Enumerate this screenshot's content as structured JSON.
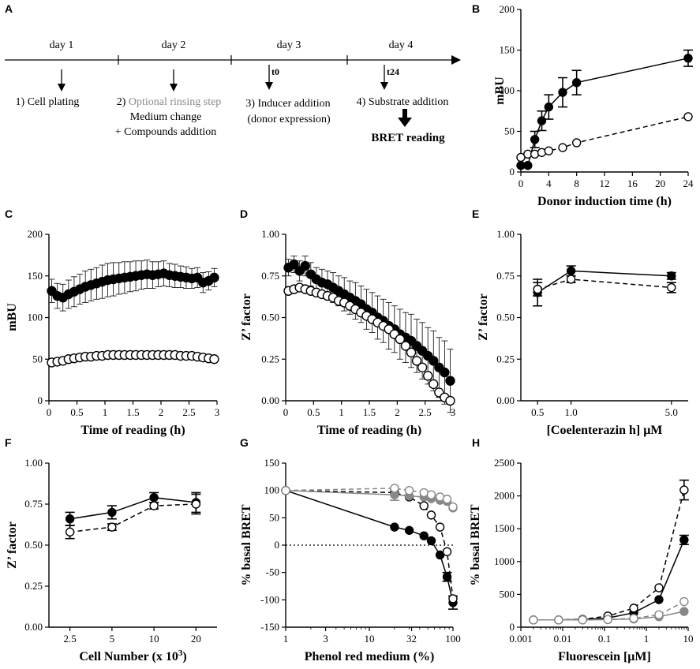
{
  "panel_labels": [
    "A",
    "B",
    "C",
    "D",
    "E",
    "F",
    "G",
    "H"
  ],
  "timeline": {
    "days": [
      "day 1",
      "day 2",
      "day 3",
      "day 4"
    ],
    "markers": [
      "t0",
      "t24"
    ],
    "steps": [
      {
        "lines": [
          "1) Cell plating"
        ],
        "grey_prefix": ""
      },
      {
        "lines": [
          "Optional rinsing step",
          "Medium change",
          "+ Compounds addition"
        ],
        "grey_prefix": "2) "
      },
      {
        "lines": [
          "3) Inducer addition",
          "(donor expression)"
        ],
        "grey_prefix": ""
      },
      {
        "lines": [
          "4) Substrate addition"
        ],
        "grey_prefix": ""
      }
    ],
    "final": "BRET reading"
  },
  "chart_data": [
    {
      "id": "B",
      "type": "line",
      "xlabel": "Donor induction time (h)",
      "ylabel": "mBU",
      "xlim": [
        0,
        24
      ],
      "ylim": [
        0,
        200
      ],
      "xticks": [
        0,
        4,
        8,
        12,
        16,
        20,
        24
      ],
      "yticks": [
        0,
        50,
        100,
        150,
        200
      ],
      "series": [
        {
          "name": "filled",
          "style": "solid",
          "color": "#000000",
          "fill": "#000000",
          "x": [
            0,
            1,
            2,
            3,
            4,
            6,
            8,
            24
          ],
          "y": [
            8,
            8,
            40,
            63,
            80,
            98,
            110,
            140
          ],
          "err": [
            0,
            0,
            10,
            12,
            15,
            18,
            15,
            10
          ]
        },
        {
          "name": "open",
          "style": "dashed",
          "color": "#000000",
          "fill": "#ffffff",
          "x": [
            0,
            1,
            2,
            3,
            4,
            6,
            8,
            24
          ],
          "y": [
            18,
            22,
            22,
            24,
            26,
            30,
            36,
            68
          ],
          "err": [
            0,
            0,
            0,
            0,
            0,
            0,
            0,
            0
          ]
        }
      ]
    },
    {
      "id": "C",
      "type": "scatter",
      "xlabel": "Time of reading (h)",
      "ylabel": "mBU",
      "xlim": [
        0,
        3
      ],
      "ylim": [
        0,
        200
      ],
      "xticks": [
        0,
        0.5,
        1,
        1.5,
        2,
        2.5,
        3
      ],
      "yticks": [
        0,
        50,
        100,
        150,
        200
      ],
      "series": [
        {
          "name": "filled",
          "style": "none",
          "color": "#000000",
          "fill": "#000000",
          "x": [
            0.05,
            0.15,
            0.25,
            0.35,
            0.45,
            0.55,
            0.65,
            0.75,
            0.85,
            0.95,
            1.05,
            1.15,
            1.25,
            1.35,
            1.45,
            1.55,
            1.65,
            1.75,
            1.85,
            1.95,
            2.05,
            2.15,
            2.25,
            2.35,
            2.45,
            2.55,
            2.65,
            2.75,
            2.85,
            2.95
          ],
          "y": [
            132,
            126,
            124,
            128,
            131,
            134,
            137,
            139,
            141,
            143,
            145,
            146,
            147,
            148,
            149,
            150,
            151,
            152,
            151,
            152,
            153,
            151,
            150,
            149,
            148,
            147,
            148,
            142,
            144,
            148
          ],
          "err": [
            14,
            15,
            16,
            17,
            18,
            18,
            19,
            19,
            19,
            20,
            20,
            20,
            19,
            19,
            18,
            18,
            17,
            17,
            16,
            15,
            15,
            14,
            14,
            13,
            13,
            12,
            12,
            12,
            11,
            11
          ]
        },
        {
          "name": "open",
          "style": "none",
          "color": "#000000",
          "fill": "#ffffff",
          "x": [
            0.05,
            0.15,
            0.25,
            0.35,
            0.45,
            0.55,
            0.65,
            0.75,
            0.85,
            0.95,
            1.05,
            1.15,
            1.25,
            1.35,
            1.45,
            1.55,
            1.65,
            1.75,
            1.85,
            1.95,
            2.05,
            2.15,
            2.25,
            2.35,
            2.45,
            2.55,
            2.65,
            2.75,
            2.85,
            2.95
          ],
          "y": [
            46,
            47,
            48,
            50,
            51,
            52,
            53,
            53,
            54,
            54,
            55,
            55,
            55,
            55,
            55,
            55,
            55,
            55,
            55,
            55,
            55,
            55,
            55,
            54,
            54,
            54,
            53,
            52,
            51,
            50
          ],
          "err": [
            0,
            0,
            0,
            0,
            0,
            0,
            0,
            0,
            0,
            0,
            0,
            0,
            0,
            0,
            0,
            0,
            0,
            0,
            0,
            0,
            0,
            0,
            0,
            0,
            0,
            0,
            0,
            0,
            0,
            0
          ]
        }
      ]
    },
    {
      "id": "D",
      "type": "scatter",
      "xlabel": "Time of reading (h)",
      "ylabel": "Z’ factor",
      "xlim": [
        0,
        3
      ],
      "ylim": [
        0,
        1
      ],
      "xticks": [
        0,
        0.5,
        1,
        1.5,
        2,
        2.5,
        3
      ],
      "yticks": [
        0,
        0.25,
        0.5,
        0.75,
        1.0
      ],
      "series": [
        {
          "name": "filled",
          "style": "none",
          "color": "#000000",
          "fill": "#000000",
          "x": [
            0.05,
            0.15,
            0.25,
            0.35,
            0.45,
            0.55,
            0.65,
            0.75,
            0.85,
            0.95,
            1.05,
            1.15,
            1.25,
            1.35,
            1.45,
            1.55,
            1.65,
            1.75,
            1.85,
            1.95,
            2.05,
            2.15,
            2.25,
            2.35,
            2.45,
            2.55,
            2.65,
            2.75,
            2.85,
            2.95
          ],
          "y": [
            0.8,
            0.82,
            0.78,
            0.81,
            0.76,
            0.73,
            0.71,
            0.7,
            0.68,
            0.66,
            0.64,
            0.62,
            0.6,
            0.58,
            0.55,
            0.53,
            0.5,
            0.48,
            0.45,
            0.43,
            0.4,
            0.38,
            0.36,
            0.33,
            0.3,
            0.27,
            0.24,
            0.2,
            0.17,
            0.12
          ],
          "err": [
            0.05,
            0.05,
            0.06,
            0.06,
            0.07,
            0.07,
            0.08,
            0.08,
            0.09,
            0.09,
            0.1,
            0.1,
            0.11,
            0.11,
            0.12,
            0.12,
            0.13,
            0.13,
            0.14,
            0.14,
            0.15,
            0.15,
            0.16,
            0.16,
            0.17,
            0.17,
            0.18,
            0.18,
            0.19,
            0.19
          ]
        },
        {
          "name": "open",
          "style": "none",
          "color": "#000000",
          "fill": "#ffffff",
          "x": [
            0.05,
            0.15,
            0.25,
            0.35,
            0.45,
            0.55,
            0.65,
            0.75,
            0.85,
            0.95,
            1.05,
            1.15,
            1.25,
            1.35,
            1.45,
            1.55,
            1.65,
            1.75,
            1.85,
            1.95,
            2.05,
            2.15,
            2.25,
            2.35,
            2.45,
            2.55,
            2.65,
            2.75,
            2.85,
            2.95
          ],
          "y": [
            0.66,
            0.67,
            0.68,
            0.67,
            0.66,
            0.65,
            0.64,
            0.63,
            0.62,
            0.6,
            0.59,
            0.57,
            0.55,
            0.53,
            0.51,
            0.49,
            0.47,
            0.45,
            0.43,
            0.4,
            0.37,
            0.33,
            0.29,
            0.24,
            0.2,
            0.15,
            0.1,
            0.05,
            0.02,
            0.0
          ],
          "err": [
            0,
            0,
            0,
            0,
            0,
            0,
            0,
            0,
            0,
            0,
            0,
            0,
            0,
            0,
            0,
            0,
            0,
            0,
            0,
            0,
            0,
            0,
            0,
            0,
            0,
            0,
            0,
            0,
            0,
            0
          ]
        }
      ]
    },
    {
      "id": "E",
      "type": "line",
      "xlabel": "[Coelenterazin h] μM",
      "ylabel": "Z’ factor",
      "xlim": [
        0,
        5.4
      ],
      "ylim": [
        0,
        1
      ],
      "xticks": [
        0.5,
        1.0,
        5.0
      ],
      "xtick_labels": [
        "0.5",
        "1.0",
        "5.0"
      ],
      "yticks": [
        0,
        0.25,
        0.5,
        0.75,
        1.0
      ],
      "x_positions": [
        1,
        2,
        5
      ],
      "series": [
        {
          "name": "filled",
          "style": "solid",
          "color": "#000000",
          "fill": "#000000",
          "x": [
            0.5,
            1.0,
            5.0
          ],
          "y": [
            0.65,
            0.78,
            0.75
          ],
          "err": [
            0.08,
            0.03,
            0.02
          ]
        },
        {
          "name": "open",
          "style": "dashed",
          "color": "#000000",
          "fill": "#ffffff",
          "x": [
            0.5,
            1.0,
            5.0
          ],
          "y": [
            0.67,
            0.73,
            0.68
          ],
          "err": [
            0.04,
            0.02,
            0.03
          ]
        }
      ]
    },
    {
      "id": "F",
      "type": "line",
      "xlabel": "Cell Number (x 10",
      "xlabel_sup": "3",
      "xlabel_end": ")",
      "ylabel": "Z’ factor",
      "xlim": [
        2,
        20
      ],
      "ylim": [
        0,
        1
      ],
      "xticks": [
        2.5,
        5,
        10,
        20
      ],
      "xtick_labels": [
        "2.5",
        "5",
        "10",
        "20"
      ],
      "yticks": [
        0,
        0.25,
        0.5,
        0.75,
        1.0
      ],
      "x_positions": [
        1,
        2,
        3,
        4
      ],
      "series": [
        {
          "name": "filled",
          "style": "solid",
          "color": "#000000",
          "fill": "#000000",
          "x": [
            2.5,
            5,
            10,
            20
          ],
          "y": [
            0.66,
            0.7,
            0.79,
            0.76
          ],
          "err": [
            0.04,
            0.04,
            0.03,
            0.06
          ]
        },
        {
          "name": "open",
          "style": "dashed",
          "color": "#000000",
          "fill": "#ffffff",
          "x": [
            2.5,
            5,
            10,
            20
          ],
          "y": [
            0.58,
            0.61,
            0.74,
            0.75
          ],
          "err": [
            0.04,
            0.02,
            0.02,
            0.06
          ]
        }
      ]
    },
    {
      "id": "G",
      "type": "line",
      "xlabel": "Phenol red medium (%)",
      "ylabel": "% basal BRET",
      "xlim": [
        1,
        100
      ],
      "xscale": "log",
      "ylim": [
        -150,
        150
      ],
      "xticks": [
        1,
        3,
        10,
        32,
        100
      ],
      "yticks": [
        -150,
        -100,
        -50,
        0,
        50,
        100,
        150
      ],
      "hline": 0,
      "series": [
        {
          "name": "black-filled",
          "style": "solid",
          "color": "#000000",
          "fill": "#000000",
          "x": [
            1,
            20,
            30,
            45,
            55,
            70,
            85,
            100
          ],
          "y": [
            100,
            33,
            27,
            17,
            8,
            -18,
            -58,
            -105
          ],
          "err": [
            0,
            0,
            0,
            0,
            0,
            0,
            8,
            12
          ]
        },
        {
          "name": "black-open",
          "style": "dashed",
          "color": "#000000",
          "fill": "#ffffff",
          "x": [
            1,
            20,
            30,
            45,
            55,
            70,
            85,
            100
          ],
          "y": [
            100,
            96,
            88,
            72,
            55,
            33,
            -12,
            -98
          ],
          "err": [
            0,
            0,
            0,
            0,
            0,
            0,
            0,
            0
          ]
        },
        {
          "name": "grey-filled",
          "style": "solid",
          "color": "#888888",
          "fill": "#888888",
          "x": [
            1,
            20,
            30,
            45,
            55,
            70,
            85,
            100
          ],
          "y": [
            100,
            92,
            90,
            88,
            85,
            82,
            80,
            68
          ],
          "err": [
            0,
            10,
            0,
            0,
            0,
            0,
            0,
            0
          ]
        },
        {
          "name": "grey-open",
          "style": "dashed",
          "color": "#888888",
          "fill": "#ffffff",
          "x": [
            1,
            20,
            30,
            45,
            55,
            70,
            85,
            100
          ],
          "y": [
            100,
            104,
            100,
            96,
            92,
            88,
            84,
            70
          ],
          "err": [
            0,
            0,
            0,
            0,
            0,
            0,
            0,
            0
          ]
        }
      ]
    },
    {
      "id": "H",
      "type": "line",
      "xlabel": "Fluorescein [μM]",
      "ylabel": "% basal BRET",
      "xlim": [
        0.001,
        10
      ],
      "xscale": "log",
      "ylim": [
        0,
        2500
      ],
      "xticks": [
        0.001,
        0.01,
        0.1,
        1,
        10
      ],
      "xtick_labels": [
        "0.001",
        "0.01",
        "0.1",
        "1",
        "10"
      ],
      "yticks": [
        0,
        500,
        1000,
        1500,
        2000,
        2500
      ],
      "series": [
        {
          "name": "black-filled",
          "style": "solid",
          "color": "#000000",
          "fill": "#000000",
          "x": [
            0.002,
            0.008,
            0.03,
            0.12,
            0.5,
            2,
            8
          ],
          "y": [
            110,
            110,
            115,
            140,
            220,
            420,
            1330
          ],
          "err": [
            0,
            0,
            0,
            0,
            0,
            0,
            70
          ]
        },
        {
          "name": "black-open",
          "style": "dashed",
          "color": "#000000",
          "fill": "#ffffff",
          "x": [
            0.002,
            0.008,
            0.03,
            0.12,
            0.5,
            2,
            8
          ],
          "y": [
            110,
            110,
            120,
            170,
            290,
            600,
            2090
          ],
          "err": [
            0,
            0,
            0,
            0,
            0,
            0,
            150
          ]
        },
        {
          "name": "grey-filled",
          "style": "solid",
          "color": "#888888",
          "fill": "#888888",
          "x": [
            0.002,
            0.008,
            0.03,
            0.12,
            0.5,
            2,
            8
          ],
          "y": [
            110,
            110,
            112,
            115,
            125,
            160,
            240
          ],
          "err": [
            0,
            0,
            0,
            0,
            0,
            0,
            0
          ]
        },
        {
          "name": "grey-open",
          "style": "dashed",
          "color": "#888888",
          "fill": "#ffffff",
          "x": [
            0.002,
            0.008,
            0.03,
            0.12,
            0.5,
            2,
            8
          ],
          "y": [
            110,
            110,
            112,
            118,
            135,
            190,
            390
          ],
          "err": [
            0,
            0,
            0,
            0,
            0,
            0,
            0
          ]
        }
      ]
    }
  ]
}
